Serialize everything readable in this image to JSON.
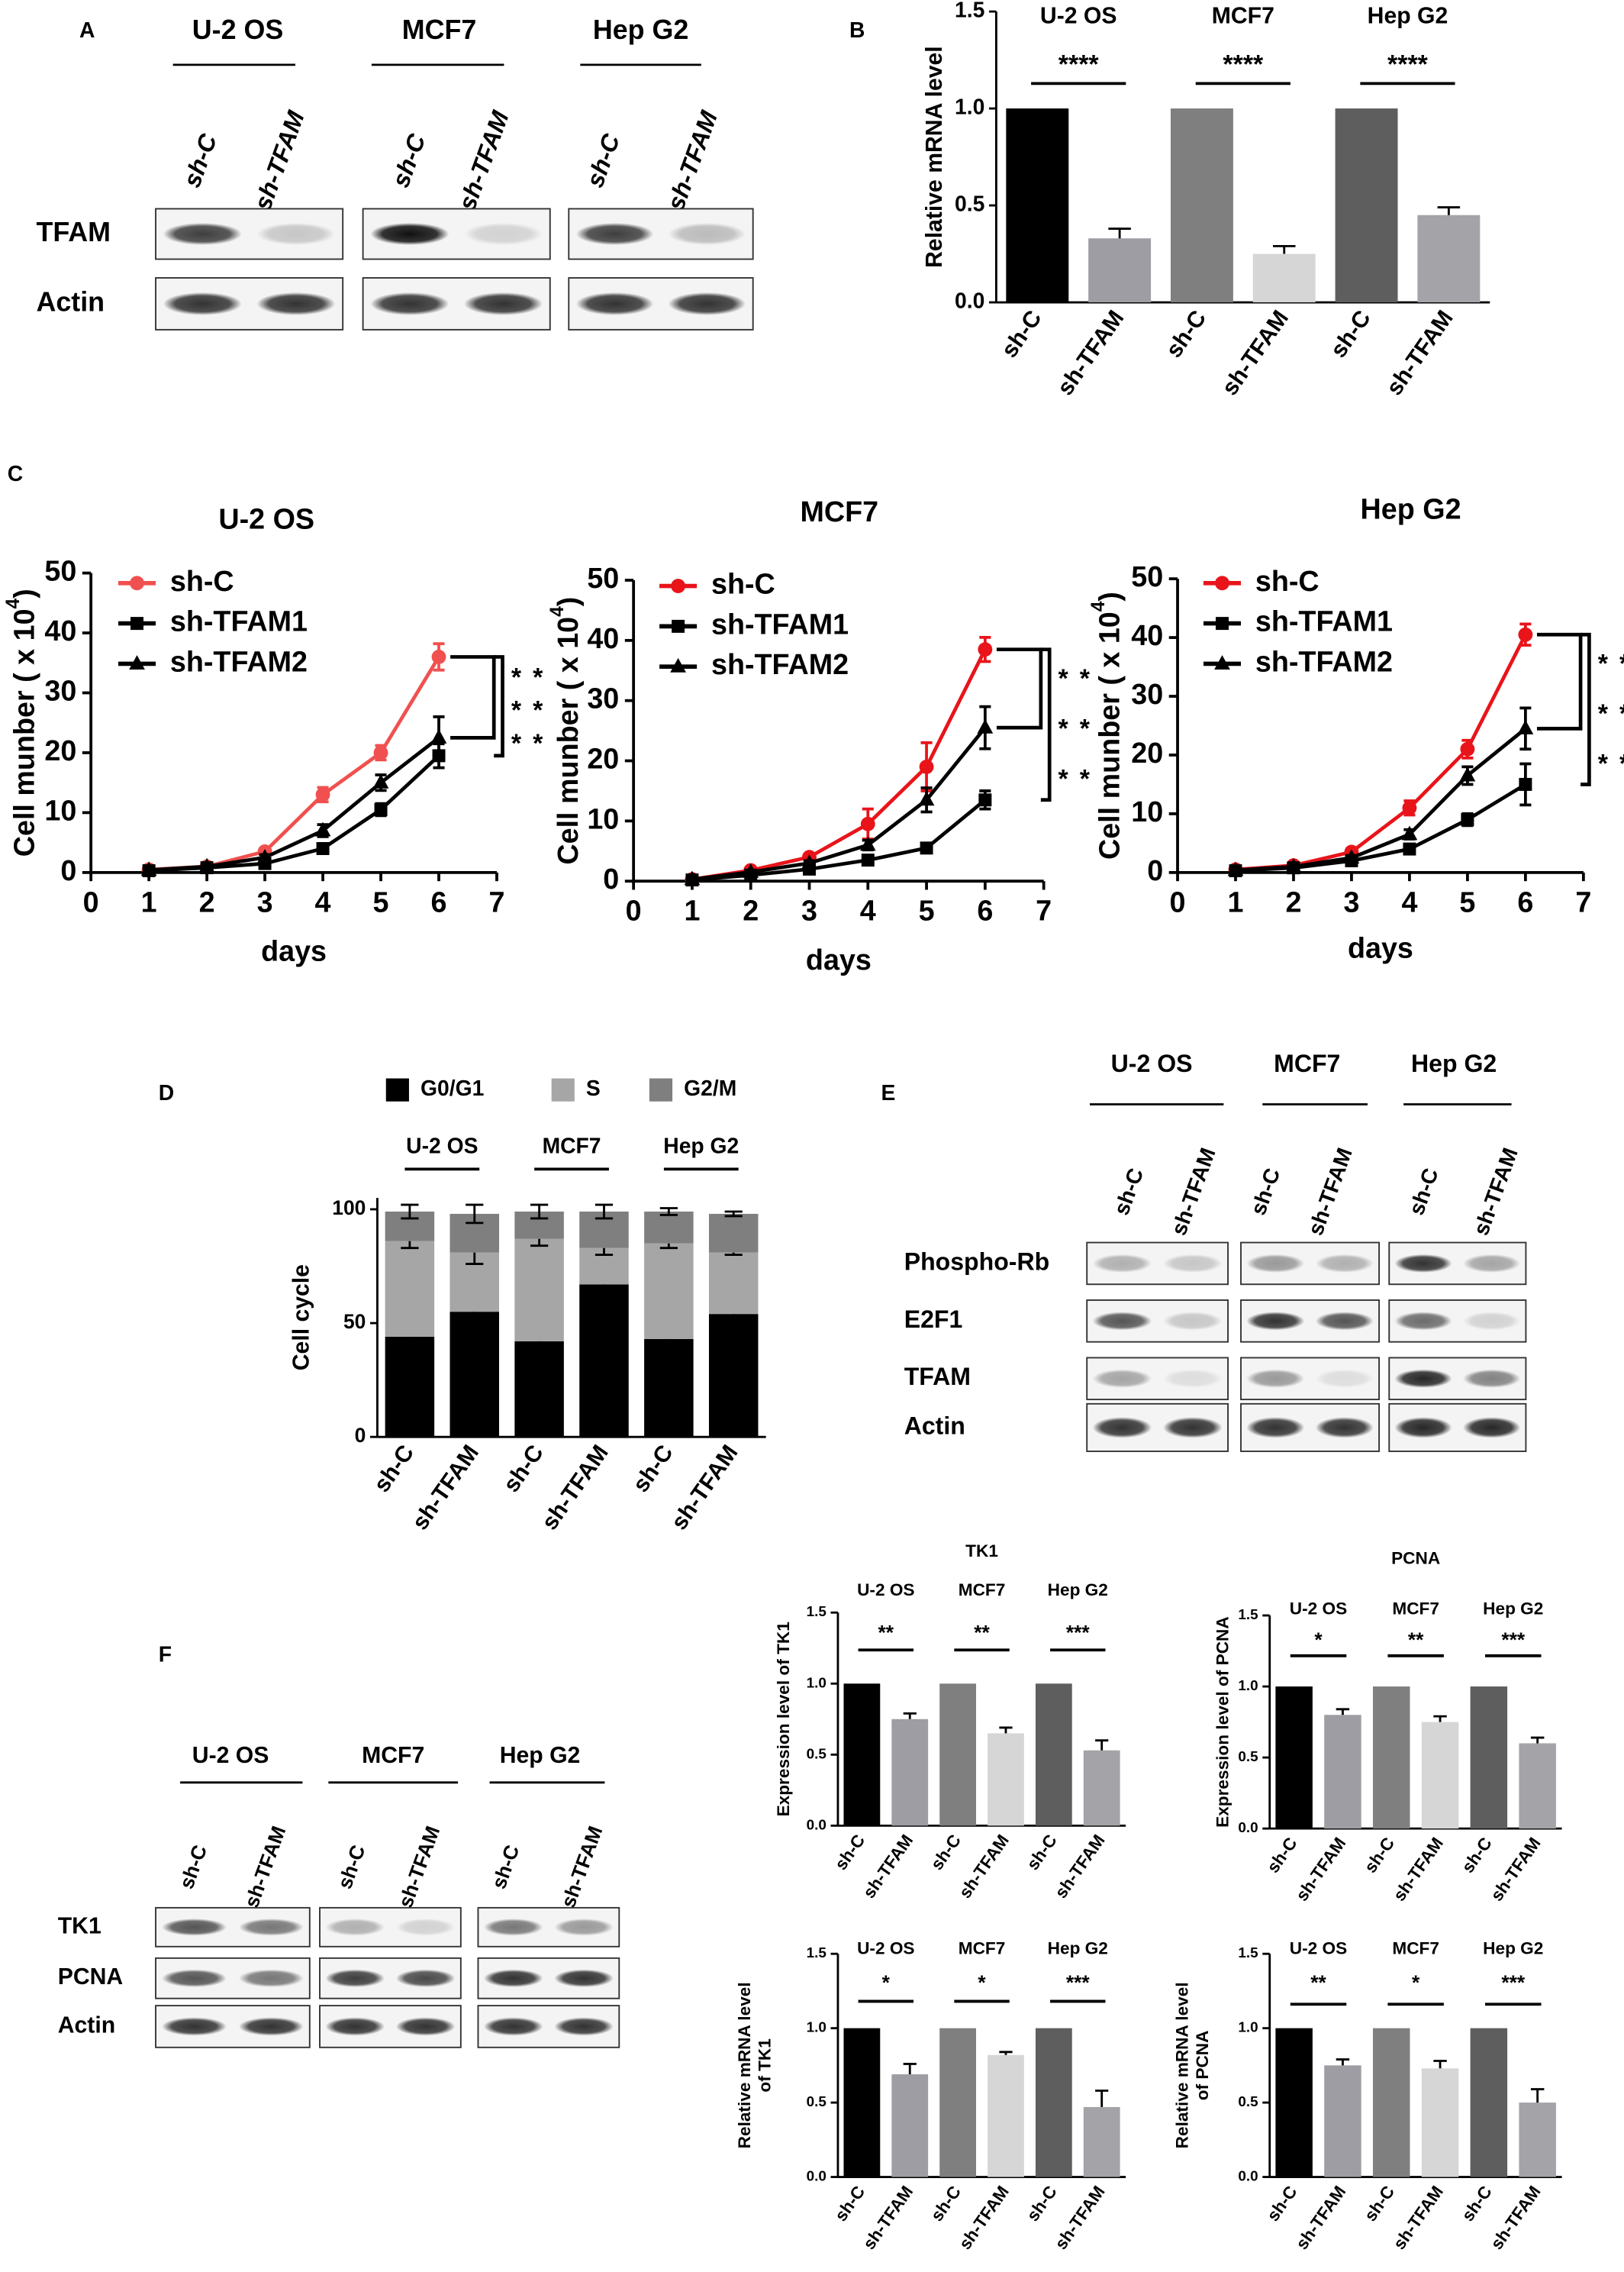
{
  "panels": [
    "A",
    "B",
    "C",
    "D",
    "E",
    "F"
  ],
  "blots": [
    {
      "groups": [
        "U-2 OS",
        "MCF7",
        "Hep G2"
      ],
      "lanes": [
        "sh-C",
        "sh-TFAM"
      ],
      "rows": [
        "TFAM",
        "Actin"
      ]
    },
    {
      "groups": [
        "U-2 OS",
        "MCF7",
        "Hep G2"
      ],
      "lanes": [
        "sh-C",
        "sh-TFAM"
      ],
      "rows": [
        "Phospho-Rb",
        "E2F1",
        "TFAM",
        "Actin"
      ]
    },
    {
      "groups": [
        "U-2 OS",
        "MCF7",
        "Hep G2"
      ],
      "lanes": [
        "sh-C",
        "sh-TFAM"
      ],
      "rows": [
        "TK1",
        "PCNA",
        "Actin"
      ]
    }
  ],
  "chart_data": [
    {
      "type": "bar",
      "ylabel": [
        "Relative mRNA  level"
      ],
      "groups": [
        "U-2 OS",
        "MCF7",
        "Hep G2"
      ],
      "categories": [
        "sh-C",
        "sh-TFAM",
        "sh-C",
        "sh-TFAM",
        "sh-C",
        "sh-TFAM"
      ],
      "values": [
        1,
        0.33,
        1,
        0.25,
        1,
        0.45
      ],
      "errors": [
        null,
        0.05,
        null,
        0.04,
        null,
        0.04
      ],
      "colors": [
        "#000000",
        "#9d9da3",
        "#7f7f7f",
        "#d6d6d6",
        "#5e5e5e",
        "#a3a3a8"
      ],
      "significance": [
        "****",
        "****",
        "****"
      ],
      "ylim": [
        0,
        1.5
      ],
      "yticks": [
        {
          "value": 0,
          "label": "0.0"
        },
        {
          "value": 0.5,
          "label": "0.5"
        },
        {
          "value": 1,
          "label": "1.0"
        },
        {
          "value": 1.5,
          "label": "1.5"
        }
      ]
    },
    {
      "type": "line",
      "title": "U-2 OS",
      "xlabel": "days",
      "ylabel": "Cell munber ( x 10",
      "ylabel_exponent": "4",
      "ylabel_end": ")",
      "x": [
        1,
        2,
        3,
        4,
        5,
        6
      ],
      "xlim": [
        0,
        7
      ],
      "xticks": [
        0,
        1,
        2,
        3,
        4,
        5,
        6,
        7
      ],
      "ylim": [
        0,
        50
      ],
      "yticks": [
        0,
        10,
        20,
        30,
        40,
        50
      ],
      "annotations": [
        "**",
        "**",
        "**"
      ],
      "series": [
        {
          "name": "sh-C",
          "color": "#f0504f",
          "marker": "circle",
          "values": [
            0.5,
            1,
            3.5,
            13,
            20,
            36
          ],
          "errors": [
            0.3,
            0.3,
            0.5,
            1.2,
            1.2,
            2.2
          ]
        },
        {
          "name": "sh-TFAM1",
          "color": "#000000",
          "marker": "square",
          "values": [
            0.3,
            0.8,
            1.5,
            4,
            10.5,
            19.5
          ],
          "errors": [
            0.2,
            0.2,
            0.4,
            0.8,
            1,
            2
          ]
        },
        {
          "name": "sh-TFAM2",
          "color": "#000000",
          "marker": "triangle",
          "values": [
            0.4,
            1,
            2.5,
            7,
            15,
            22.5
          ],
          "errors": [
            0.2,
            0.3,
            0.5,
            1,
            1.3,
            3.5
          ]
        }
      ]
    },
    {
      "type": "line",
      "title": "MCF7",
      "xlabel": "days",
      "ylabel": "Cell munber ( x 10",
      "ylabel_exponent": "4",
      "ylabel_end": ")",
      "x": [
        1,
        2,
        3,
        4,
        5,
        6
      ],
      "xlim": [
        0,
        7
      ],
      "xticks": [
        0,
        1,
        2,
        3,
        4,
        5,
        6,
        7
      ],
      "ylim": [
        0,
        50
      ],
      "yticks": [
        0,
        10,
        20,
        30,
        40,
        50
      ],
      "annotations": [
        "**",
        "**",
        "**"
      ],
      "series": [
        {
          "name": "sh-C",
          "color": "#e8141a",
          "marker": "circle",
          "values": [
            0.3,
            1.8,
            4,
            9.5,
            19,
            38.5
          ],
          "errors": [
            0.2,
            0.3,
            0.5,
            2.5,
            4,
            2
          ]
        },
        {
          "name": "sh-TFAM1",
          "color": "#000000",
          "marker": "square",
          "values": [
            0.2,
            1,
            2,
            3.5,
            5.5,
            13.5
          ],
          "errors": [
            0.1,
            0.2,
            0.3,
            0.5,
            0.8,
            1.5
          ]
        },
        {
          "name": "sh-TFAM2",
          "color": "#000000",
          "marker": "triangle",
          "values": [
            0.3,
            1.5,
            3,
            6,
            13.5,
            25.5
          ],
          "errors": [
            0.2,
            0.3,
            0.4,
            0.8,
            2,
            3.5
          ]
        }
      ]
    },
    {
      "type": "line",
      "title": "Hep G2",
      "xlabel": "days",
      "ylabel": "Cell munber ( x 10",
      "ylabel_exponent": "4",
      "ylabel_end": ")",
      "x": [
        1,
        2,
        3,
        4,
        5,
        6
      ],
      "xlim": [
        0,
        7
      ],
      "xticks": [
        0,
        1,
        2,
        3,
        4,
        5,
        6,
        7
      ],
      "ylim": [
        0,
        50
      ],
      "yticks": [
        0,
        10,
        20,
        30,
        40,
        50
      ],
      "annotations": [
        "***",
        "***",
        "***"
      ],
      "series": [
        {
          "name": "sh-C",
          "color": "#e8141a",
          "marker": "circle",
          "values": [
            0.5,
            1.2,
            3.5,
            11,
            21,
            40.5
          ],
          "errors": [
            0.3,
            0.3,
            0.5,
            1.2,
            1.5,
            1.8
          ]
        },
        {
          "name": "sh-TFAM1",
          "color": "#000000",
          "marker": "square",
          "values": [
            0.3,
            0.8,
            2,
            4,
            9,
            15
          ],
          "errors": [
            0.2,
            0.2,
            0.3,
            0.6,
            1,
            3.5
          ]
        },
        {
          "name": "sh-TFAM2",
          "color": "#000000",
          "marker": "triangle",
          "values": [
            0.4,
            1,
            2.5,
            6.5,
            16.5,
            24.5
          ],
          "errors": [
            0.2,
            0.2,
            0.4,
            0.8,
            1.5,
            3.5
          ]
        }
      ]
    },
    {
      "type": "stacked_bar",
      "ylabel": [
        "Cell cycle"
      ],
      "groups": [
        "U-2 OS",
        "MCF7",
        "Hep G2"
      ],
      "categories": [
        "sh-C",
        "sh-TFAM",
        "sh-C",
        "sh-TFAM",
        "sh-C",
        "sh-TFAM"
      ],
      "ylim": [
        0,
        105
      ],
      "yticks": [
        0,
        50,
        100
      ],
      "series": [
        {
          "name": "G0/G1",
          "color": "#000000",
          "values": [
            44,
            55,
            42,
            67,
            43,
            54
          ],
          "errors": [
            1.5,
            3.5,
            2.5,
            4,
            1,
            1
          ]
        },
        {
          "name": "S",
          "color": "#a6a6a6",
          "values": [
            42,
            26,
            45,
            16,
            42,
            27
          ],
          "errors": [
            3,
            5,
            3,
            3,
            2,
            1
          ]
        },
        {
          "name": "G2/M",
          "color": "#7f7f7f",
          "values": [
            13,
            17,
            12,
            16,
            14,
            17
          ],
          "errors": [
            3,
            4,
            3,
            3,
            1.5,
            1
          ]
        }
      ]
    },
    {
      "type": "bar",
      "title": "TK1",
      "ylabel": [
        "Expression level of TK1"
      ],
      "groups": [
        "U-2 OS",
        "MCF7",
        "Hep G2"
      ],
      "categories": [
        "sh-C",
        "sh-TFAM",
        "sh-C",
        "sh-TFAM",
        "sh-C",
        "sh-TFAM"
      ],
      "values": [
        1,
        0.75,
        1,
        0.65,
        1,
        0.53
      ],
      "errors": [
        null,
        0.04,
        null,
        0.04,
        null,
        0.07
      ],
      "colors": [
        "#000000",
        "#9d9da3",
        "#7f7f7f",
        "#d6d6d6",
        "#5e5e5e",
        "#a3a3a8"
      ],
      "significance": [
        "**",
        "**",
        "***"
      ],
      "ylim": [
        0,
        1.5
      ],
      "yticks": [
        {
          "value": 0,
          "label": "0.0"
        },
        {
          "value": 0.5,
          "label": "0.5"
        },
        {
          "value": 1,
          "label": "1.0"
        },
        {
          "value": 1.5,
          "label": "1.5"
        }
      ]
    },
    {
      "type": "bar",
      "title": "PCNA",
      "ylabel": [
        "Expression level of PCNA"
      ],
      "groups": [
        "U-2 OS",
        "MCF7",
        "Hep G2"
      ],
      "categories": [
        "sh-C",
        "sh-TFAM",
        "sh-C",
        "sh-TFAM",
        "sh-C",
        "sh-TFAM"
      ],
      "values": [
        1,
        0.8,
        1,
        0.75,
        1,
        0.6
      ],
      "errors": [
        null,
        0.04,
        null,
        0.04,
        null,
        0.04
      ],
      "colors": [
        "#000000",
        "#9d9da3",
        "#7f7f7f",
        "#d6d6d6",
        "#5e5e5e",
        "#a3a3a8"
      ],
      "significance": [
        "*",
        "**",
        "***"
      ],
      "ylim": [
        0,
        1.5
      ],
      "yticks": [
        {
          "value": 0,
          "label": "0.0"
        },
        {
          "value": 0.5,
          "label": "0.5"
        },
        {
          "value": 1,
          "label": "1.0"
        },
        {
          "value": 1.5,
          "label": "1.5"
        }
      ]
    },
    {
      "type": "bar",
      "ylabel": [
        "Relative mRNA  level",
        "of TK1"
      ],
      "groups": [
        "U-2 OS",
        "MCF7",
        "Hep G2"
      ],
      "categories": [
        "sh-C",
        "sh-TFAM",
        "sh-C",
        "sh-TFAM",
        "sh-C",
        "sh-TFAM"
      ],
      "values": [
        1,
        0.69,
        1,
        0.82,
        1,
        0.47
      ],
      "errors": [
        null,
        0.07,
        null,
        0.02,
        null,
        0.11
      ],
      "colors": [
        "#000000",
        "#9d9da3",
        "#7f7f7f",
        "#d6d6d6",
        "#5e5e5e",
        "#a3a3a8"
      ],
      "significance": [
        "*",
        "*",
        "***"
      ],
      "ylim": [
        0,
        1.5
      ],
      "yticks": [
        {
          "value": 0,
          "label": "0.0"
        },
        {
          "value": 0.5,
          "label": "0.5"
        },
        {
          "value": 1,
          "label": "1.0"
        },
        {
          "value": 1.5,
          "label": "1.5"
        }
      ]
    },
    {
      "type": "bar",
      "ylabel": [
        "Relative mRNA  level",
        "of PCNA"
      ],
      "groups": [
        "U-2 OS",
        "MCF7",
        "Hep G2"
      ],
      "categories": [
        "sh-C",
        "sh-TFAM",
        "sh-C",
        "sh-TFAM",
        "sh-C",
        "sh-TFAM"
      ],
      "values": [
        1,
        0.75,
        1,
        0.73,
        1,
        0.5
      ],
      "errors": [
        null,
        0.04,
        null,
        0.05,
        null,
        0.09
      ],
      "colors": [
        "#000000",
        "#9d9da3",
        "#7f7f7f",
        "#d6d6d6",
        "#5e5e5e",
        "#a3a3a8"
      ],
      "significance": [
        "**",
        "*",
        "***"
      ],
      "ylim": [
        0,
        1.5
      ],
      "yticks": [
        {
          "value": 0,
          "label": "0.0"
        },
        {
          "value": 0.5,
          "label": "0.5"
        },
        {
          "value": 1,
          "label": "1.0"
        },
        {
          "value": 1.5,
          "label": "1.5"
        }
      ]
    }
  ]
}
